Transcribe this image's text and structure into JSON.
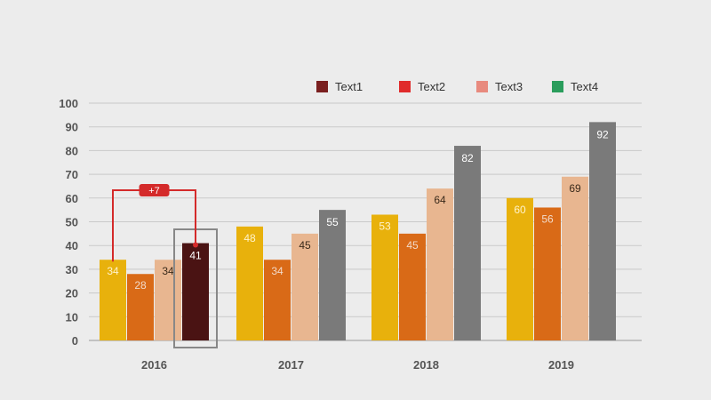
{
  "chart_data": {
    "type": "bar",
    "categories": [
      "2016",
      "2017",
      "2018",
      "2019"
    ],
    "series": [
      {
        "name": "Text1",
        "values": [
          34,
          48,
          53,
          60
        ]
      },
      {
        "name": "Text2",
        "values": [
          28,
          34,
          45,
          56
        ]
      },
      {
        "name": "Text3",
        "values": [
          34,
          45,
          64,
          69
        ]
      },
      {
        "name": "Text4",
        "values": [
          41,
          55,
          82,
          92
        ]
      }
    ],
    "yticks": [
      "0",
      "10",
      "20",
      "30",
      "40",
      "50",
      "60",
      "70",
      "80",
      "90",
      "100"
    ],
    "ylim": [
      0,
      100
    ],
    "grid": true,
    "legend_position": "top-right",
    "legend_colors": [
      "#7a1f1f",
      "#e02b2b",
      "#e88a7e",
      "#2a9d5c"
    ],
    "bar_colors": [
      "#e8b10c",
      "#d96a17",
      "#e8b690",
      "#7a7a7a"
    ],
    "highlight": {
      "category_index": 0,
      "series_index": 3,
      "color": "#4a1313"
    },
    "callout": {
      "label": "+7",
      "color": "#d42a2a"
    }
  }
}
